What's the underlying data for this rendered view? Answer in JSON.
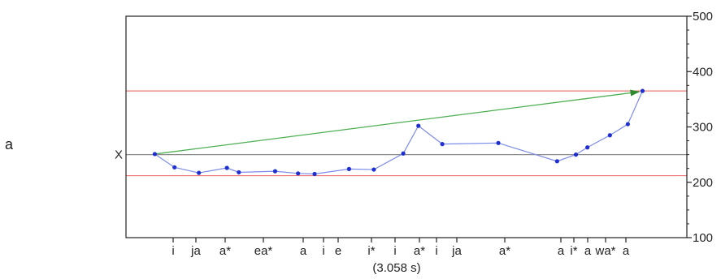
{
  "panel_label": "a",
  "chart_data": {
    "type": "line",
    "ylim": [
      100,
      500
    ],
    "y_axis_side": "right",
    "yticks": [
      100,
      200,
      300,
      400,
      500
    ],
    "grid": false,
    "reference_line_label": "X",
    "reference_line_value": 250,
    "band_lines": [
      365,
      212
    ],
    "duration_label": "(3.058 s)",
    "x_tick_labels": [
      "i",
      "ja",
      "a*",
      "ea*",
      "a",
      "i",
      "e",
      "i*",
      "i",
      "a*",
      "i",
      "ja",
      "a*",
      "a",
      "i*",
      "a",
      "wa*",
      "a"
    ],
    "series": [
      {
        "values": [
          {
            "x": 0.045,
            "y": 251
          },
          {
            "x": 0.088,
            "y": 227
          },
          {
            "x": 0.141,
            "y": 217
          },
          {
            "x": 0.202,
            "y": 226
          },
          {
            "x": 0.228,
            "y": 218
          },
          {
            "x": 0.307,
            "y": 220
          },
          {
            "x": 0.357,
            "y": 216
          },
          {
            "x": 0.393,
            "y": 215
          },
          {
            "x": 0.468,
            "y": 224
          },
          {
            "x": 0.522,
            "y": 223
          },
          {
            "x": 0.586,
            "y": 252
          },
          {
            "x": 0.619,
            "y": 302
          },
          {
            "x": 0.671,
            "y": 269
          },
          {
            "x": 0.793,
            "y": 271
          },
          {
            "x": 0.921,
            "y": 238
          },
          {
            "x": 0.962,
            "y": 250
          },
          {
            "x": 0.987,
            "y": 263
          },
          {
            "x": 1.036,
            "y": 285
          },
          {
            "x": 1.075,
            "y": 305
          },
          {
            "x": 1.107,
            "y": 365
          }
        ]
      }
    ],
    "trend_arrow": {
      "from": {
        "x": 0.045,
        "y": 251
      },
      "to": {
        "x": 1.107,
        "y": 365
      }
    },
    "colors": {
      "series": "#7b8be8",
      "points": "#1f2fd0",
      "band": "#ee7777",
      "reference": "#8c8c8c",
      "arrow": "#4caf50",
      "axis": "#222222"
    }
  }
}
